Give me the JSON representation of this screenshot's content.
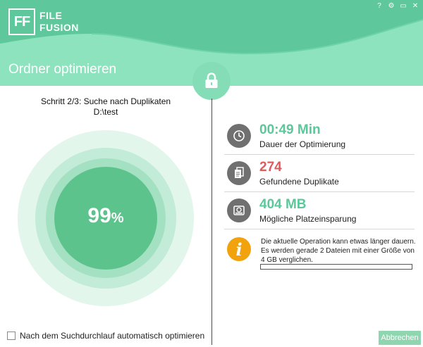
{
  "app": {
    "logo_mark": "FF",
    "logo_line1": "FILE",
    "logo_line2": "FUSION"
  },
  "window_controls": [
    {
      "name": "help-icon",
      "glyph": "?"
    },
    {
      "name": "settings-icon",
      "glyph": "⚙"
    },
    {
      "name": "minimize-icon",
      "glyph": "▭"
    },
    {
      "name": "close-icon",
      "glyph": "✕"
    }
  ],
  "header": {
    "title": "Ordner optimieren"
  },
  "left": {
    "step": "Schritt 2/3: Suche nach Duplikaten",
    "path": "D:\\test",
    "percent_value": "99",
    "percent_sign": "%",
    "auto_optimize_label": "Nach dem Suchdurchlauf automatisch optimieren",
    "auto_optimize_checked": false
  },
  "stats": [
    {
      "icon": "clock-icon",
      "value": "00:49 Min",
      "label": "Dauer der Optimierung",
      "color": "#5cc79a"
    },
    {
      "icon": "document-icon",
      "value": "274",
      "label": "Gefundene Duplikate",
      "color": "#e05a5a"
    },
    {
      "icon": "hard-drive-icon",
      "value": "404 MB",
      "label": "Mögliche Platzeinsparung",
      "color": "#5cc79a"
    }
  ],
  "info": {
    "icon": "info-icon",
    "text": "Die aktuelle Operation kann etwas länger dauern. Es werden gerade 2 Dateien mit einer Größe von 4 GB verglichen.",
    "progress_fraction": 0.0
  },
  "buttons": {
    "cancel": "Abbrechen"
  },
  "colors": {
    "accent": "#8ee3bf",
    "accent_dark": "#5cc79a",
    "ring_outer": "#e2f6ec",
    "ring_mid": "#c2ecd7",
    "ring_inner": "#a3e1c2",
    "core": "#5cc38c"
  }
}
